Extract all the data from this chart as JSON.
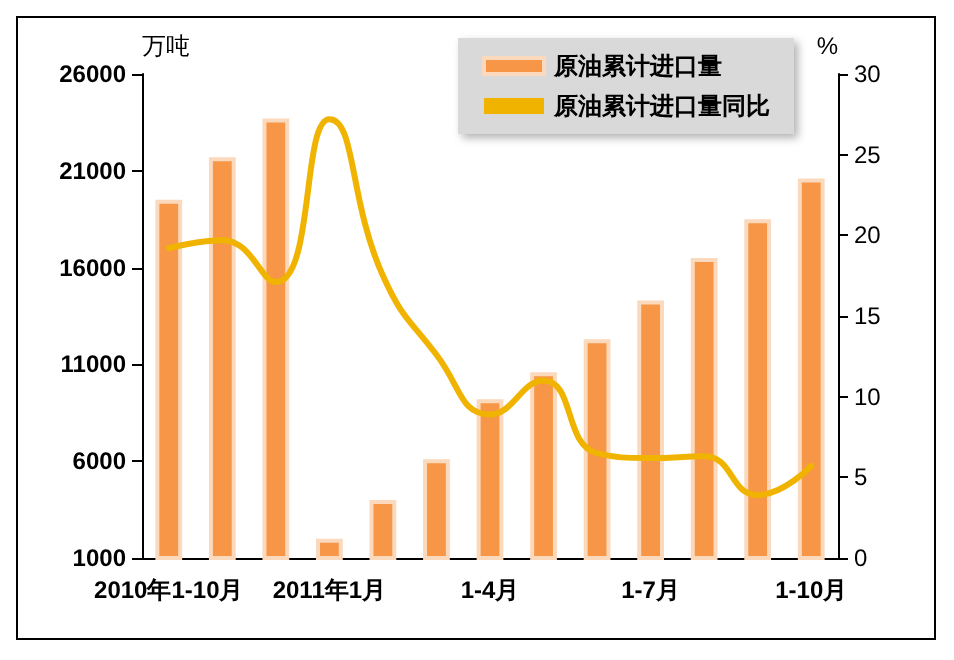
{
  "chart_data": {
    "type": "bar",
    "ylabel": "万吨",
    "y2label": "%",
    "categories": [
      "2010年1-10月",
      null,
      null,
      "2011年1月",
      null,
      null,
      "1-4月",
      null,
      null,
      "1-7月",
      null,
      null,
      "1-10月"
    ],
    "series": [
      {
        "name": "原油累计进口量",
        "color": "#f79646",
        "values": [
          19500,
          21700,
          23700,
          2000,
          4000,
          6100,
          9200,
          10600,
          12300,
          14300,
          16500,
          18500,
          20600
        ]
      },
      {
        "name": "原油累计进口量同比",
        "type": "line",
        "axis": "y2",
        "color": "#f0b400",
        "values": [
          19.2,
          19.7,
          17.1,
          27.2,
          17.5,
          12.6,
          8.9,
          11.0,
          6.5,
          6.2,
          6.3,
          3.9,
          5.7
        ]
      }
    ],
    "ylim": [
      1000,
      26000
    ],
    "yticks": [
      1000,
      6000,
      11000,
      16000,
      21000,
      26000
    ],
    "y2lim": [
      0,
      30
    ],
    "y2ticks": [
      0,
      5,
      10,
      15,
      20,
      25,
      30
    ],
    "grid": false,
    "legend": "top right",
    "marker": "none",
    "line_style": "solid"
  }
}
